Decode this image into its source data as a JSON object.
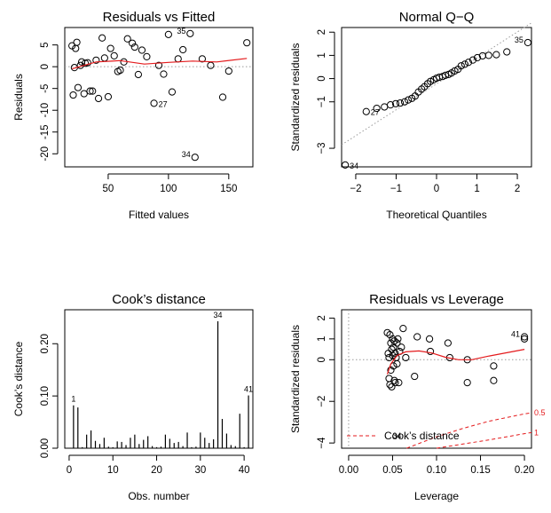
{
  "chart_data": [
    {
      "type": "scatter",
      "title": "Residuals vs Fitted",
      "xlabel": "Fitted values",
      "ylabel": "Residuals",
      "xlim": [
        14,
        170
      ],
      "ylim": [
        -23,
        9
      ],
      "xticks": [
        50,
        100,
        150
      ],
      "yticks": [
        -20,
        -15,
        -10,
        -5,
        0,
        5
      ],
      "points": [
        [
          20,
          4.8
        ],
        [
          21,
          -6.5
        ],
        [
          22,
          -0.2
        ],
        [
          23,
          4.2
        ],
        [
          24,
          5.6
        ],
        [
          25,
          -4.8
        ],
        [
          27,
          0.3
        ],
        [
          28,
          1.1
        ],
        [
          30,
          -6.2
        ],
        [
          31,
          0.8
        ],
        [
          33,
          0.9
        ],
        [
          35,
          -5.6
        ],
        [
          37,
          -5.6
        ],
        [
          40,
          1.5
        ],
        [
          42,
          -7.3
        ],
        [
          45,
          6.6
        ],
        [
          47,
          2.0
        ],
        [
          50,
          -6.9
        ],
        [
          52,
          4.2
        ],
        [
          55,
          2.5
        ],
        [
          58,
          -1.1
        ],
        [
          60,
          -0.8
        ],
        [
          63,
          1.1
        ],
        [
          66,
          6.4
        ],
        [
          70,
          5.4
        ],
        [
          72,
          4.5
        ],
        [
          75,
          -1.8
        ],
        [
          78,
          3.8
        ],
        [
          82,
          2.3
        ],
        [
          88,
          -8.4
        ],
        [
          92,
          0.3
        ],
        [
          96,
          -1.7
        ],
        [
          100,
          7.4
        ],
        [
          103,
          -5.8
        ],
        [
          108,
          1.8
        ],
        [
          112,
          3.9
        ],
        [
          118,
          7.6
        ],
        [
          122,
          -20.8
        ],
        [
          128,
          1.8
        ],
        [
          135,
          0.3
        ],
        [
          145,
          -7.0
        ],
        [
          150,
          -1.0
        ],
        [
          165,
          5.5
        ]
      ],
      "smoother": [
        [
          20,
          -0.5
        ],
        [
          40,
          1.1
        ],
        [
          60,
          1.4
        ],
        [
          80,
          0.6
        ],
        [
          100,
          1.0
        ],
        [
          120,
          1.3
        ],
        [
          140,
          1.1
        ],
        [
          165,
          1.9
        ]
      ],
      "labels": [
        {
          "text": "35",
          "x": 118,
          "y": 7.6,
          "side": "left"
        },
        {
          "text": "27",
          "x": 88,
          "y": -8.4,
          "side": "right"
        },
        {
          "text": "34",
          "x": 122,
          "y": -20.8,
          "side": "left"
        }
      ]
    },
    {
      "type": "scatter",
      "title": "Normal Q−Q",
      "xlabel": "Theoretical Quantiles",
      "ylabel": "Standardized residuals",
      "xlim": [
        -2.35,
        2.35
      ],
      "ylim": [
        -3.8,
        2.2
      ],
      "xticks": [
        -2,
        -1,
        0,
        1,
        2
      ],
      "xtick_labels": [
        "−2",
        "−1",
        "0",
        "1",
        "2"
      ],
      "yticks": [
        -3,
        -1,
        0,
        1,
        2
      ],
      "ytick_labels": [
        "−3",
        "−1",
        "0",
        "1",
        "2"
      ],
      "points": [
        [
          -2.26,
          -3.72
        ],
        [
          -1.74,
          -1.42
        ],
        [
          -1.48,
          -1.28
        ],
        [
          -1.29,
          -1.22
        ],
        [
          -1.14,
          -1.13
        ],
        [
          -1.01,
          -1.08
        ],
        [
          -0.9,
          -1.05
        ],
        [
          -0.79,
          -1.0
        ],
        [
          -0.7,
          -0.92
        ],
        [
          -0.61,
          -0.85
        ],
        [
          -0.53,
          -0.75
        ],
        [
          -0.45,
          -0.58
        ],
        [
          -0.37,
          -0.45
        ],
        [
          -0.3,
          -0.35
        ],
        [
          -0.22,
          -0.22
        ],
        [
          -0.15,
          -0.12
        ],
        [
          -0.07,
          -0.05
        ],
        [
          0.0,
          0.02
        ],
        [
          0.07,
          0.06
        ],
        [
          0.15,
          0.09
        ],
        [
          0.22,
          0.14
        ],
        [
          0.3,
          0.18
        ],
        [
          0.37,
          0.24
        ],
        [
          0.45,
          0.33
        ],
        [
          0.53,
          0.4
        ],
        [
          0.61,
          0.55
        ],
        [
          0.7,
          0.62
        ],
        [
          0.79,
          0.7
        ],
        [
          0.9,
          0.8
        ],
        [
          1.01,
          0.9
        ],
        [
          1.14,
          0.98
        ],
        [
          1.29,
          1.0
        ],
        [
          1.48,
          1.03
        ],
        [
          1.74,
          1.15
        ],
        [
          2.26,
          1.55
        ]
      ],
      "reference_line": [
        [
          -2.35,
          -2.85
        ],
        [
          2.35,
          2.4
        ]
      ],
      "labels": [
        {
          "text": "35",
          "x": 2.26,
          "y": 1.55,
          "side": "left"
        },
        {
          "text": "27",
          "x": -1.74,
          "y": -1.42,
          "side": "right"
        },
        {
          "text": "34",
          "x": -2.26,
          "y": -3.72,
          "side": "right"
        }
      ]
    },
    {
      "type": "bar",
      "title": "Cook’s distance",
      "xlabel": "Obs. number",
      "ylabel": "Cook’s distance",
      "xlim": [
        -1,
        42
      ],
      "ylim": [
        0,
        0.265
      ],
      "xticks": [
        0,
        10,
        20,
        30,
        40
      ],
      "yticks": [
        0.0,
        0.1,
        0.2
      ],
      "ytick_labels": [
        "0.00",
        "0.10",
        "0.20"
      ],
      "x": [
        1,
        2,
        3,
        4,
        5,
        6,
        7,
        8,
        9,
        10,
        11,
        12,
        13,
        14,
        15,
        16,
        17,
        18,
        19,
        20,
        21,
        22,
        23,
        24,
        25,
        26,
        27,
        28,
        29,
        30,
        31,
        32,
        33,
        34,
        35,
        36,
        37,
        38,
        39,
        40,
        41
      ],
      "values": [
        0.082,
        0.078,
        0.002,
        0.026,
        0.034,
        0.014,
        0.008,
        0.02,
        0.003,
        0.002,
        0.013,
        0.012,
        0.006,
        0.02,
        0.026,
        0.008,
        0.016,
        0.023,
        0.004,
        0.002,
        0.003,
        0.026,
        0.018,
        0.01,
        0.012,
        0.004,
        0.03,
        0.002,
        0.003,
        0.03,
        0.02,
        0.01,
        0.017,
        0.243,
        0.056,
        0.028,
        0.006,
        0.004,
        0.066,
        0.002,
        0.101
      ],
      "labels": [
        {
          "text": "1",
          "x": 1,
          "y": 0.082
        },
        {
          "text": "34",
          "x": 34,
          "y": 0.243
        },
        {
          "text": "41",
          "x": 41,
          "y": 0.101
        }
      ]
    },
    {
      "type": "scatter",
      "title": "Residuals vs Leverage",
      "xlabel": "Leverage",
      "ylabel": "Standardized residuals",
      "xlim": [
        -0.008,
        0.208
      ],
      "ylim": [
        -4.25,
        2.4
      ],
      "xticks": [
        0.0,
        0.05,
        0.1,
        0.15,
        0.2
      ],
      "xtick_labels": [
        "0.00",
        "0.05",
        "0.10",
        "0.15",
        "0.20"
      ],
      "yticks": [
        -4,
        -2,
        0,
        1,
        2
      ],
      "ytick_labels": [
        "−4",
        "−2",
        "0",
        "1",
        "2"
      ],
      "points": [
        [
          0.044,
          1.3
        ],
        [
          0.045,
          0.3
        ],
        [
          0.046,
          -0.9
        ],
        [
          0.046,
          0.1
        ],
        [
          0.047,
          -1.2
        ],
        [
          0.047,
          1.2
        ],
        [
          0.048,
          0.8
        ],
        [
          0.048,
          -0.5
        ],
        [
          0.049,
          0.5
        ],
        [
          0.049,
          -1.3
        ],
        [
          0.05,
          0.2
        ],
        [
          0.05,
          1.0
        ],
        [
          0.051,
          -0.3
        ],
        [
          0.051,
          0.6
        ],
        [
          0.052,
          -1.0
        ],
        [
          0.052,
          0.9
        ],
        [
          0.053,
          0.3
        ],
        [
          0.053,
          -1.1
        ],
        [
          0.054,
          0.1
        ],
        [
          0.055,
          0.8
        ],
        [
          0.055,
          -0.2
        ],
        [
          0.056,
          1.0
        ],
        [
          0.057,
          -1.1
        ],
        [
          0.058,
          0.4
        ],
        [
          0.06,
          0.6
        ],
        [
          0.062,
          1.5
        ],
        [
          0.065,
          0.1
        ],
        [
          0.075,
          -0.8
        ],
        [
          0.078,
          1.1
        ],
        [
          0.092,
          1.0
        ],
        [
          0.093,
          0.4
        ],
        [
          0.113,
          0.8
        ],
        [
          0.115,
          0.1
        ],
        [
          0.135,
          0.0
        ],
        [
          0.135,
          -1.1
        ],
        [
          0.165,
          -0.3
        ],
        [
          0.165,
          -1.0
        ],
        [
          0.2,
          1.0
        ],
        [
          0.2,
          1.1
        ]
      ],
      "smoother": [
        [
          0.044,
          -0.7
        ],
        [
          0.048,
          -0.2
        ],
        [
          0.055,
          0.2
        ],
        [
          0.065,
          0.38
        ],
        [
          0.08,
          0.42
        ],
        [
          0.095,
          0.32
        ],
        [
          0.11,
          0.12
        ],
        [
          0.125,
          0.0
        ],
        [
          0.14,
          0.0
        ],
        [
          0.16,
          0.18
        ],
        [
          0.2,
          0.5
        ]
      ],
      "cook_contours": [
        {
          "level": "0.5",
          "points": [
            [
              0.066,
              -4.25
            ],
            [
              0.1,
              -3.7
            ],
            [
              0.13,
              -3.3
            ],
            [
              0.16,
              -2.95
            ],
            [
              0.2,
              -2.6
            ],
            [
              0.208,
              -2.55
            ]
          ]
        },
        {
          "level": "1",
          "points": [
            [
              0.1,
              -4.25
            ],
            [
              0.13,
              -4.05
            ],
            [
              0.16,
              -3.85
            ],
            [
              0.2,
              -3.55
            ],
            [
              0.208,
              -3.5
            ]
          ]
        }
      ],
      "labels": [
        {
          "text": "41",
          "x": 0.2,
          "y": 1.1,
          "side": "left"
        },
        {
          "text": "34",
          "x": 0.055,
          "y": -3.65,
          "side": "center"
        }
      ],
      "legend": {
        "text": "Cook’s distance",
        "position": "bottom-left"
      }
    }
  ]
}
